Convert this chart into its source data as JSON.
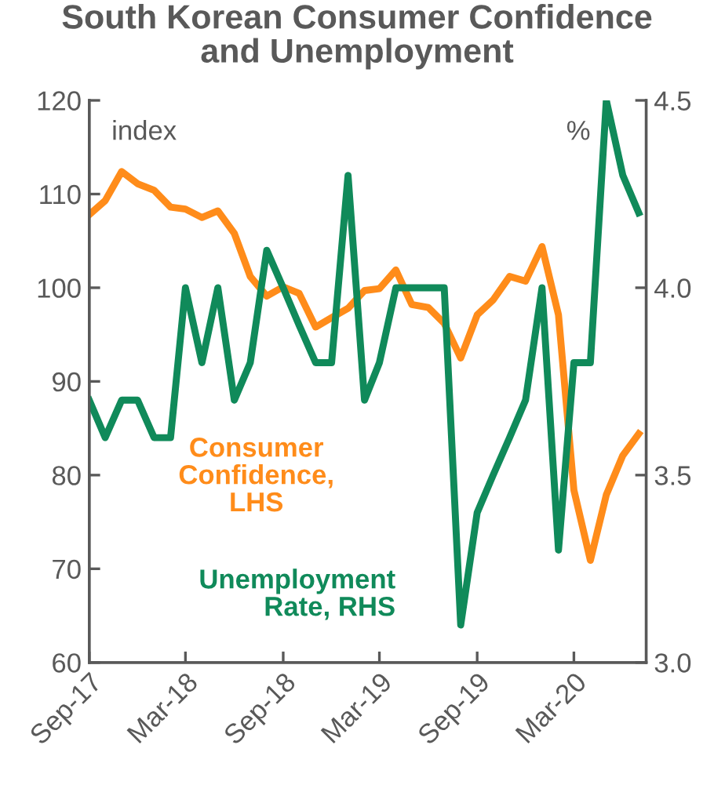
{
  "chart_data": {
    "type": "line",
    "title": "South Korean Consumer Confidence\nand Unemployment",
    "ylabel": "index",
    "y2label": "%",
    "x": [
      "2017-09",
      "2017-10",
      "2017-11",
      "2017-12",
      "2018-01",
      "2018-02",
      "2018-03",
      "2018-04",
      "2018-05",
      "2018-06",
      "2018-07",
      "2018-08",
      "2018-09",
      "2018-10",
      "2018-11",
      "2018-12",
      "2019-01",
      "2019-02",
      "2019-03",
      "2019-04",
      "2019-05",
      "2019-06",
      "2019-07",
      "2019-08",
      "2019-09",
      "2019-10",
      "2019-11",
      "2019-12",
      "2020-01",
      "2020-02",
      "2020-03",
      "2020-04",
      "2020-05",
      "2020-06",
      "2020-07"
    ],
    "series": [
      {
        "name": "Consumer\nConfidence,\nLHS",
        "color": "#ff8c1a",
        "values": [
          107.8,
          109.3,
          112.4,
          111.1,
          110.4,
          108.6,
          108.4,
          107.5,
          108.2,
          105.8,
          101.2,
          99.1,
          100.1,
          99.4,
          95.8,
          96.8,
          97.8,
          99.7,
          99.9,
          101.9,
          98.2,
          97.9,
          96.2,
          92.5,
          97.1,
          98.7,
          101.2,
          100.7,
          104.4,
          97.1,
          78.4,
          70.9,
          77.9,
          82.1,
          84.4
        ]
      },
      {
        "name": "Unemployment\nRate, RHS",
        "color": "#108a5a",
        "axis": "y2",
        "values": [
          3.7,
          3.6,
          3.7,
          3.7,
          3.6,
          3.6,
          4.0,
          3.8,
          4.0,
          3.7,
          3.8,
          4.1,
          4.0,
          3.9,
          3.8,
          3.8,
          4.3,
          3.7,
          3.8,
          4.0,
          4.0,
          4.0,
          4.0,
          3.1,
          3.4,
          3.5,
          3.6,
          3.7,
          4.0,
          3.3,
          3.8,
          3.8,
          4.5,
          4.3,
          4.2
        ]
      }
    ],
    "xlim": [
      "2017-09-01",
      "2020-07-15"
    ],
    "xticks": [
      {
        "value": "2017-09-01",
        "label": "Sep-17"
      },
      {
        "value": "2018-03-01",
        "label": "Mar-18"
      },
      {
        "value": "2018-09-01",
        "label": "Sep-18"
      },
      {
        "value": "2019-03-01",
        "label": "Mar-19"
      },
      {
        "value": "2019-09-01",
        "label": "Sep-19"
      },
      {
        "value": "2020-03-01",
        "label": "Mar-20"
      }
    ],
    "ylim": [
      60,
      120
    ],
    "yticks": [
      60,
      70,
      80,
      90,
      100,
      110,
      120
    ],
    "y2lim": [
      3.0,
      4.5
    ],
    "y2ticks": [
      {
        "value": 3.0,
        "label": "3.0"
      },
      {
        "value": 3.5,
        "label": "3.5"
      },
      {
        "value": 4.0,
        "label": "4.0"
      },
      {
        "value": 4.5,
        "label": "4.5"
      }
    ],
    "grid": false,
    "line_style": "solid",
    "marker": "none"
  }
}
